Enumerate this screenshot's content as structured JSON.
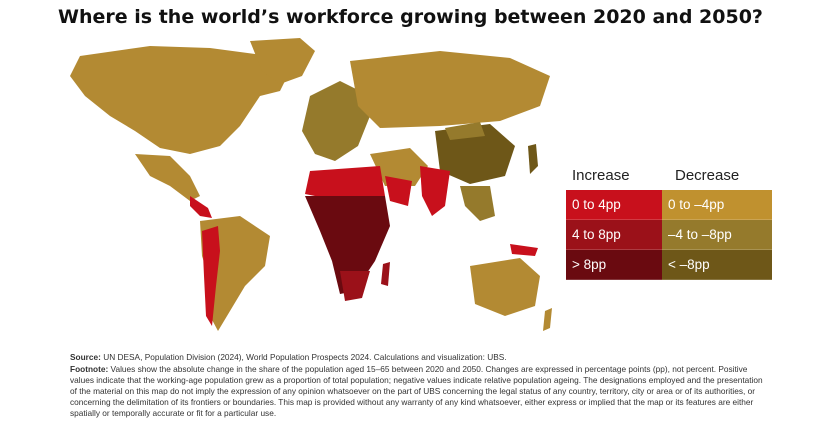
{
  "title": "Where is the world’s workforce growing between 2020 and 2050?",
  "legend": {
    "increase_label": "Increase",
    "decrease_label": "Decrease",
    "items": [
      {
        "label": "0 to 4pp",
        "color": "#c8101c",
        "group": "increase"
      },
      {
        "label": "0 to –4pp",
        "color": "#c0912f",
        "group": "decrease"
      },
      {
        "label": "4 to 8pp",
        "color": "#9b1119",
        "group": "increase"
      },
      {
        "label": "–4 to –8pp",
        "color": "#957a2c",
        "group": "decrease"
      },
      {
        "label": "> 8pp",
        "color": "#6a0a10",
        "group": "increase"
      },
      {
        "label": "< –8pp",
        "color": "#6e5718",
        "group": "decrease"
      }
    ]
  },
  "source": {
    "label": "Source:",
    "text": " UN DESA, Population Division (2024), World Population Prospects 2024. Calculations and visualization: UBS."
  },
  "footnote": {
    "label": "Footnote:",
    "text": " Values show the absolute change in the share of the population aged 15–65 between 2020 and 2050. Changes are expressed in percentage points (pp), not percent. Positive values indicate that the working-age population grew as a proportion of total population; negative values indicate relative population ageing. The designations employed and the presentation of the material on this map do not imply the expression of any opinion whatsoever on the part of UBS concerning the legal status of any country, territory, city or area or of its authorities, or concerning the delimitation of its frontiers or boundaries. This map is provided without any warranty of any kind whatsoever, either express or implied that the map or its features are either spatially or temporally accurate or fit for a particular use."
  },
  "map_colors": {
    "decrease_light": "#c0912f",
    "decrease_mid": "#957a2c",
    "decrease_dark": "#6e5718",
    "increase_light": "#c8101c",
    "increase_mid": "#9b1119",
    "increase_dark": "#6a0a10"
  }
}
